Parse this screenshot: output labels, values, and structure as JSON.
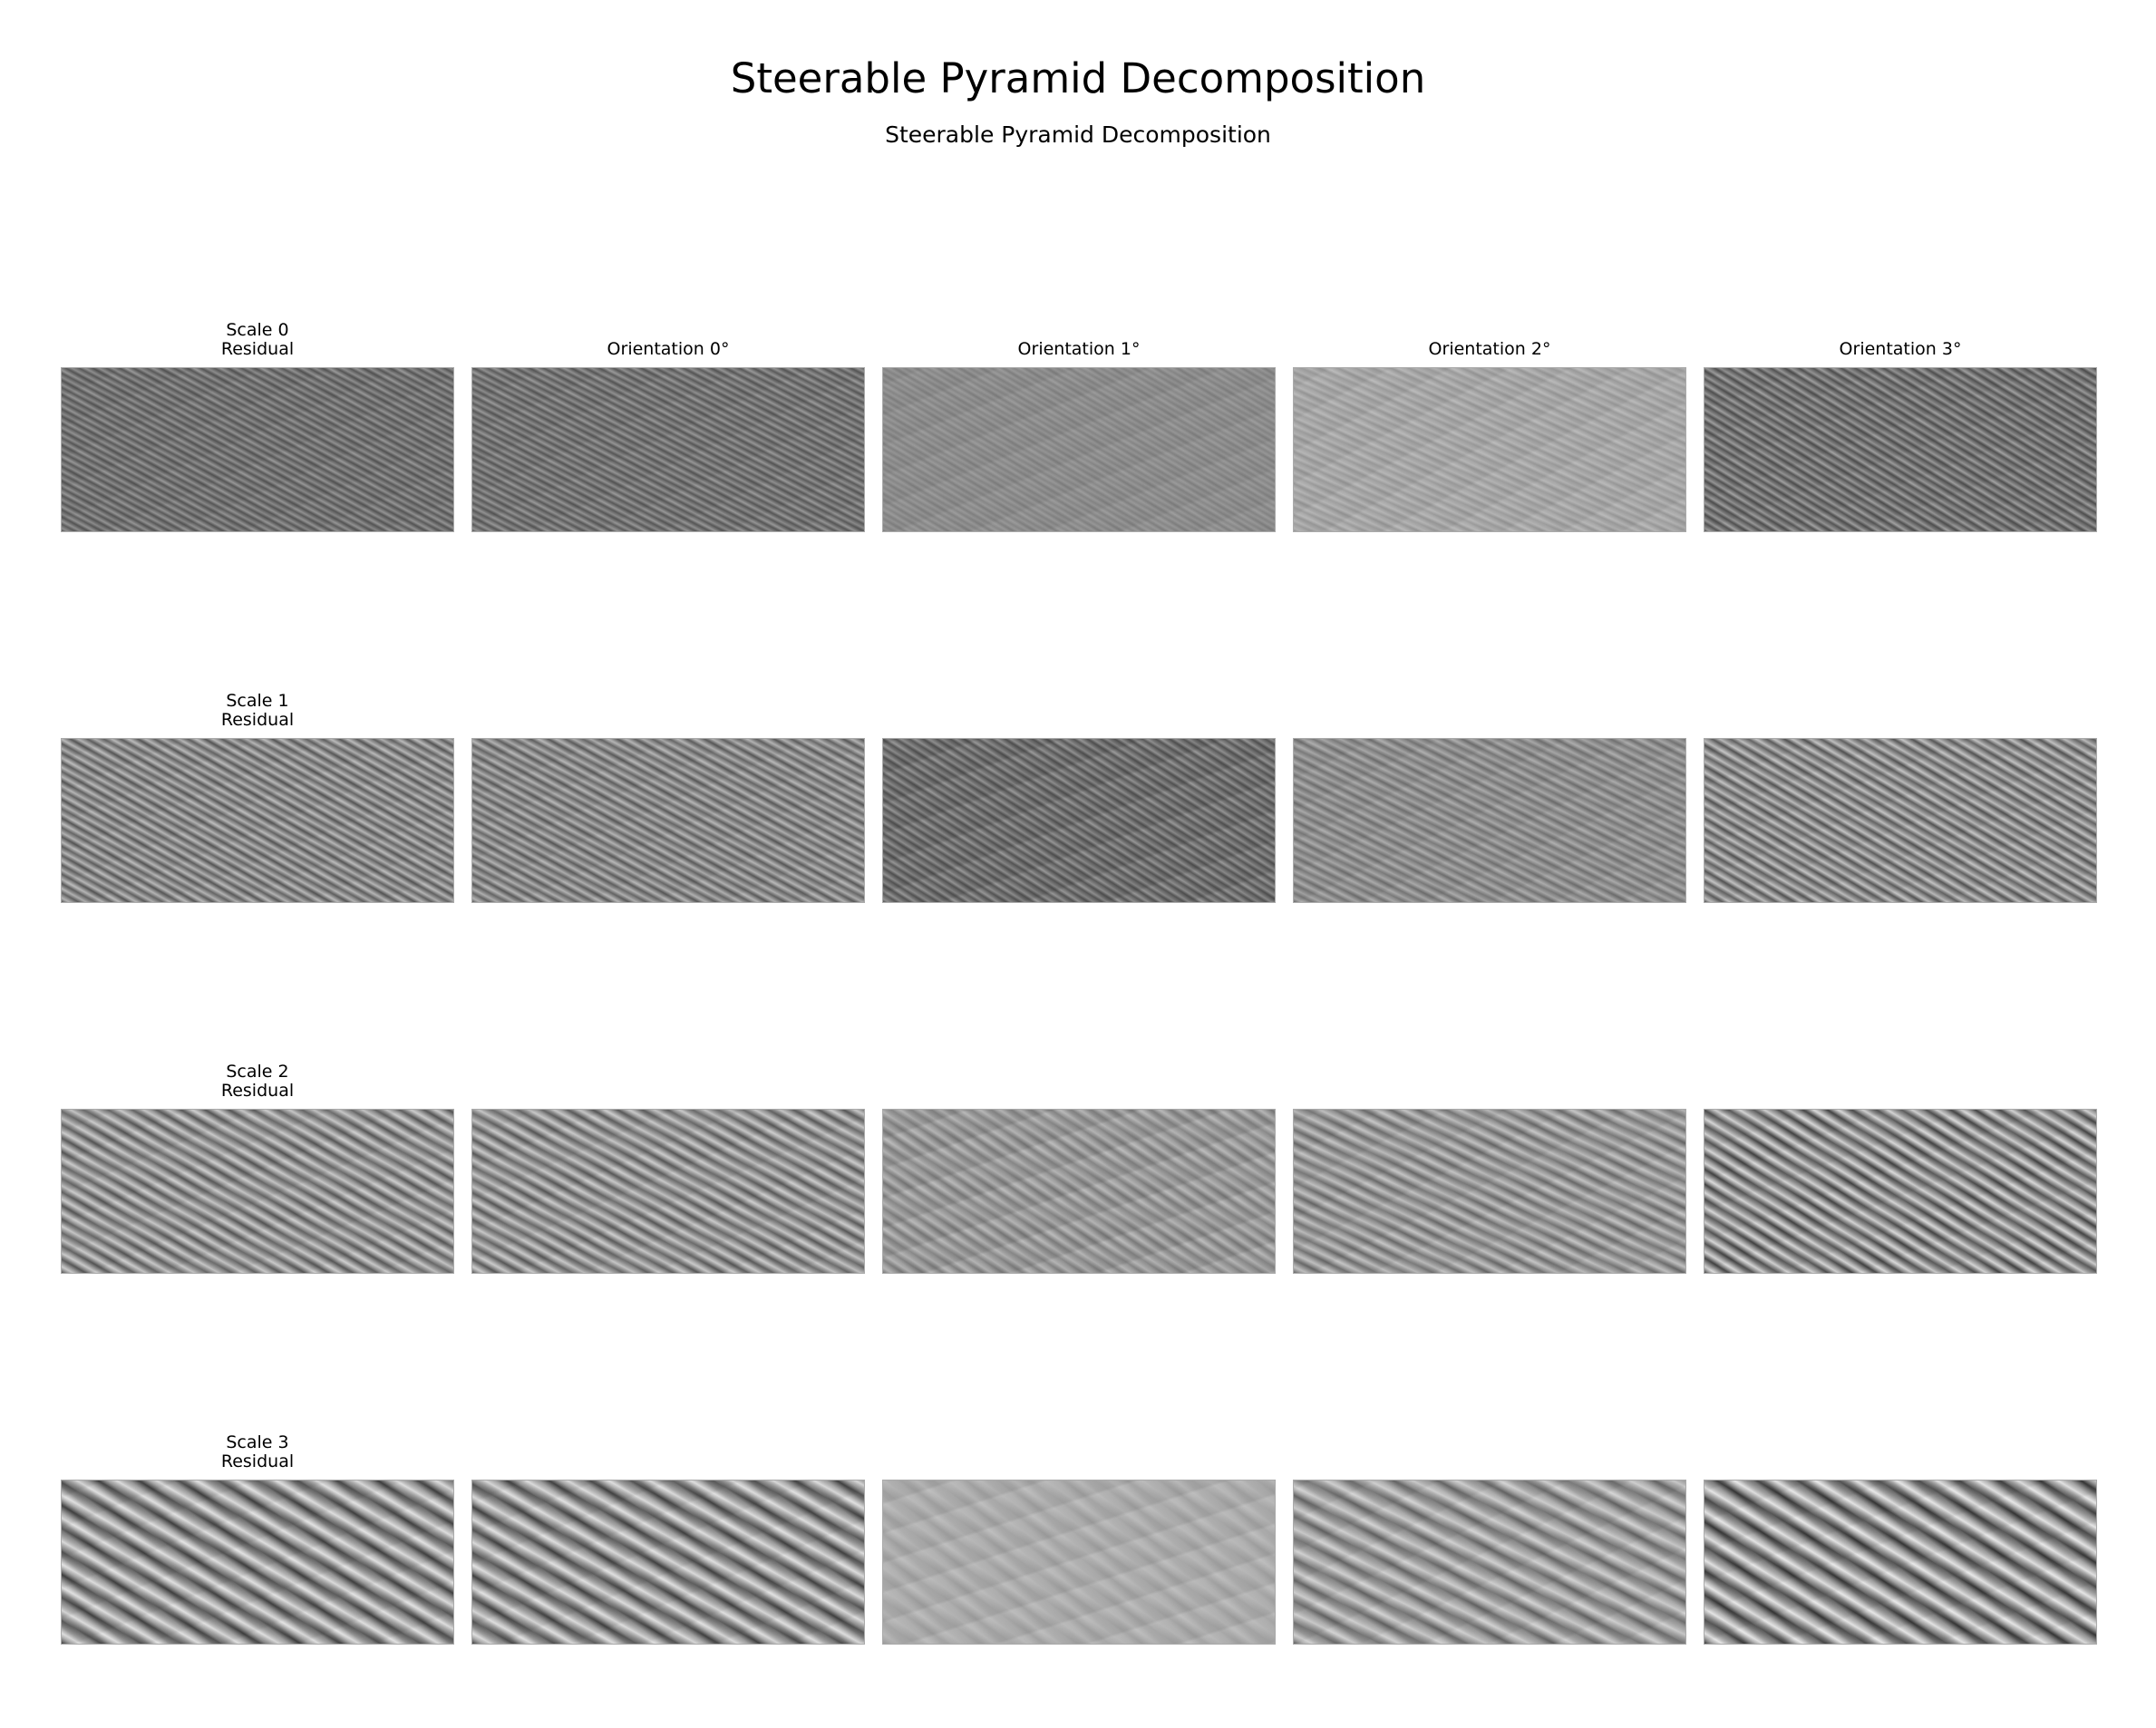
{
  "figure": {
    "title": "Steerable Pyramid Decomposition",
    "subtitle": "Steerable Pyramid Decomposition"
  },
  "columns": [
    {
      "title": "Orientation 0°"
    },
    {
      "title": "Orientation 1°"
    },
    {
      "title": "Orientation 2°"
    },
    {
      "title": "Orientation 3°"
    }
  ],
  "rows": [
    {
      "scale_label": "Scale 0",
      "residual_label": "Residual"
    },
    {
      "scale_label": "Scale 1",
      "residual_label": "Residual"
    },
    {
      "scale_label": "Scale 2",
      "residual_label": "Residual"
    },
    {
      "scale_label": "Scale 3",
      "residual_label": "Residual"
    }
  ],
  "panel_colormap": "gray",
  "panel_texture": "diagonal-stripes"
}
